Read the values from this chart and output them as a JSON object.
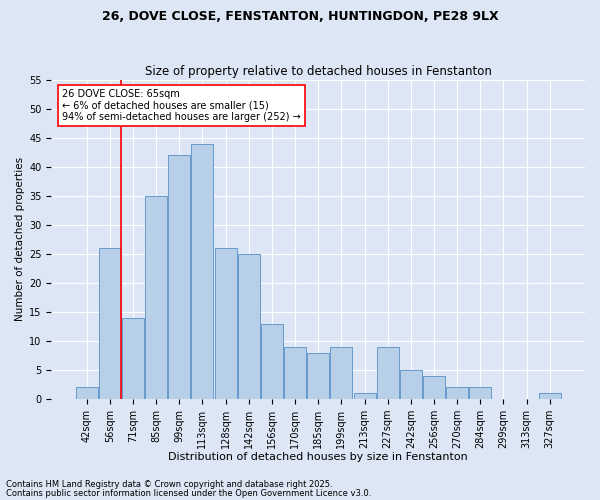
{
  "title1": "26, DOVE CLOSE, FENSTANTON, HUNTINGDON, PE28 9LX",
  "title2": "Size of property relative to detached houses in Fenstanton",
  "xlabel": "Distribution of detached houses by size in Fenstanton",
  "ylabel": "Number of detached properties",
  "categories": [
    "42sqm",
    "56sqm",
    "71sqm",
    "85sqm",
    "99sqm",
    "113sqm",
    "128sqm",
    "142sqm",
    "156sqm",
    "170sqm",
    "185sqm",
    "199sqm",
    "213sqm",
    "227sqm",
    "242sqm",
    "256sqm",
    "270sqm",
    "284sqm",
    "299sqm",
    "313sqm",
    "327sqm"
  ],
  "values": [
    2,
    26,
    14,
    35,
    42,
    44,
    26,
    25,
    13,
    9,
    8,
    9,
    1,
    9,
    5,
    4,
    2,
    2,
    0,
    0,
    1
  ],
  "bar_color": "#b8cfe8",
  "bar_edge_color": "#6699cc",
  "vline_color": "red",
  "vline_x": 1.5,
  "annotation_text": "26 DOVE CLOSE: 65sqm\n← 6% of detached houses are smaller (15)\n94% of semi-detached houses are larger (252) →",
  "annotation_box_color": "white",
  "annotation_box_edge": "red",
  "ylim": [
    0,
    55
  ],
  "yticks": [
    0,
    5,
    10,
    15,
    20,
    25,
    30,
    35,
    40,
    45,
    50,
    55
  ],
  "footer1": "Contains HM Land Registry data © Crown copyright and database right 2025.",
  "footer2": "Contains public sector information licensed under the Open Government Licence v3.0.",
  "bg_color": "#dce6f5",
  "plot_bg_color": "#dce6f5",
  "title1_fontsize": 9,
  "title2_fontsize": 8.5,
  "xlabel_fontsize": 8,
  "ylabel_fontsize": 7.5,
  "tick_fontsize": 7,
  "annot_fontsize": 7,
  "footer_fontsize": 6
}
